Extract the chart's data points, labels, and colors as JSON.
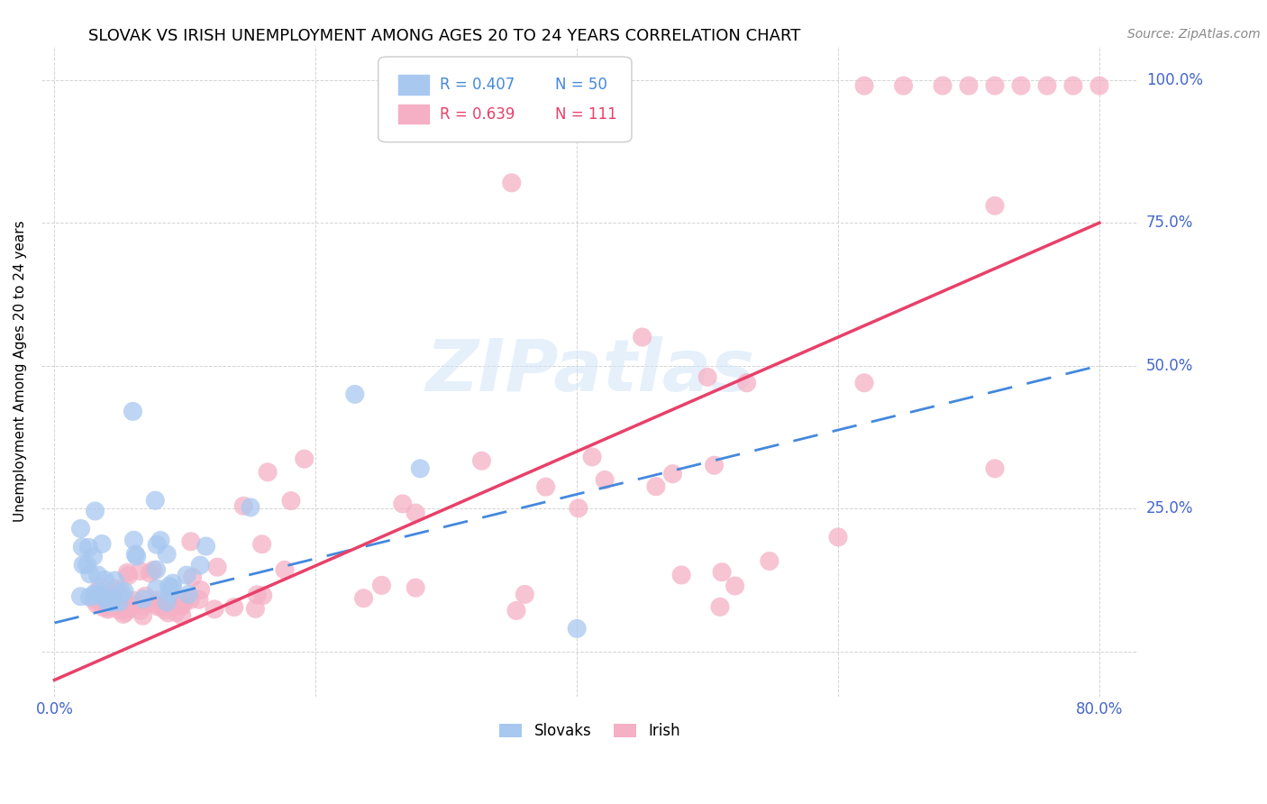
{
  "title": "SLOVAK VS IRISH UNEMPLOYMENT AMONG AGES 20 TO 24 YEARS CORRELATION CHART",
  "source": "Source: ZipAtlas.com",
  "ylabel": "Unemployment Among Ages 20 to 24 years",
  "xlim": [
    -0.01,
    0.83
  ],
  "ylim": [
    -0.08,
    1.06
  ],
  "xticks": [
    0.0,
    0.2,
    0.4,
    0.6,
    0.8
  ],
  "yticks": [
    0.0,
    0.25,
    0.5,
    0.75,
    1.0
  ],
  "legend_blue_r": "R = 0.407",
  "legend_blue_n": "N = 50",
  "legend_pink_r": "R = 0.639",
  "legend_pink_n": "N = 111",
  "legend_blue_label": "Slovaks",
  "legend_pink_label": "Irish",
  "blue_scatter_color": "#a8c8f0",
  "pink_scatter_color": "#f5b0c5",
  "blue_line_color": "#4488dd",
  "pink_line_color": "#e8406a",
  "blue_text_color": "#4488dd",
  "pink_text_color": "#e8406a",
  "tick_color": "#4466cc",
  "title_fontsize": 13,
  "source_fontsize": 10,
  "axis_label_fontsize": 11,
  "tick_fontsize": 12,
  "watermark_text": "ZIPatlas",
  "watermark_color": "#d0e4f8",
  "pink_line_x0": 0.0,
  "pink_line_y0": -0.05,
  "pink_line_x1": 0.8,
  "pink_line_y1": 0.75,
  "blue_line_x0": 0.0,
  "blue_line_y0": 0.05,
  "blue_line_x1": 0.8,
  "blue_line_y1": 0.5
}
